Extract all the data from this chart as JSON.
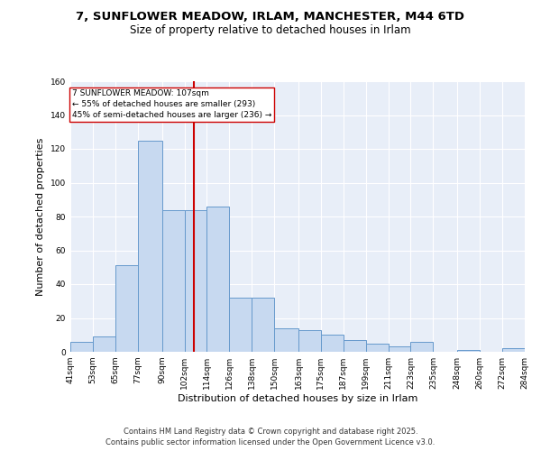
{
  "title": "7, SUNFLOWER MEADOW, IRLAM, MANCHESTER, M44 6TD",
  "subtitle": "Size of property relative to detached houses in Irlam",
  "xlabel": "Distribution of detached houses by size in Irlam",
  "ylabel": "Number of detached properties",
  "bar_edges": [
    41,
    53,
    65,
    77,
    90,
    102,
    114,
    126,
    138,
    150,
    163,
    175,
    187,
    199,
    211,
    223,
    235,
    248,
    260,
    272,
    284
  ],
  "bar_heights": [
    6,
    9,
    51,
    125,
    84,
    84,
    86,
    32,
    32,
    14,
    13,
    10,
    7,
    5,
    3,
    6,
    0,
    1,
    0,
    2
  ],
  "bar_color": "#c7d9f0",
  "bar_edge_color": "#6699cc",
  "vline_x": 107,
  "vline_color": "#cc0000",
  "annotation_text": "7 SUNFLOWER MEADOW: 107sqm\n← 55% of detached houses are smaller (293)\n45% of semi-detached houses are larger (236) →",
  "annotation_box_color": "#ffffff",
  "annotation_box_edge": "#cc0000",
  "ylim": [
    0,
    160
  ],
  "yticks": [
    0,
    20,
    40,
    60,
    80,
    100,
    120,
    140,
    160
  ],
  "tick_labels": [
    "41sqm",
    "53sqm",
    "65sqm",
    "77sqm",
    "90sqm",
    "102sqm",
    "114sqm",
    "126sqm",
    "138sqm",
    "150sqm",
    "163sqm",
    "175sqm",
    "187sqm",
    "199sqm",
    "211sqm",
    "223sqm",
    "235sqm",
    "248sqm",
    "260sqm",
    "272sqm",
    "284sqm"
  ],
  "footer": "Contains HM Land Registry data © Crown copyright and database right 2025.\nContains public sector information licensed under the Open Government Licence v3.0.",
  "bg_color": "#e8eef8",
  "title_fontsize": 9.5,
  "subtitle_fontsize": 8.5,
  "axis_label_fontsize": 8,
  "tick_fontsize": 6.5,
  "annotation_fontsize": 6.5,
  "footer_fontsize": 6
}
